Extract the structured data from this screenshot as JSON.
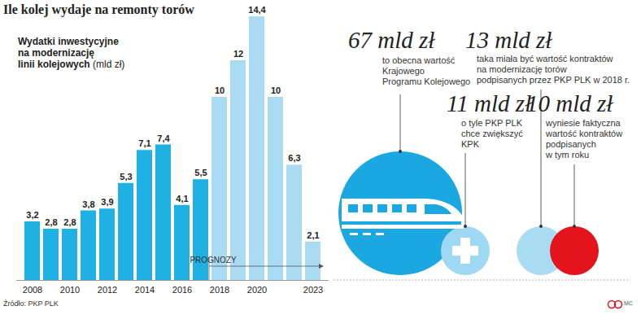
{
  "chart_data": {
    "type": "bar",
    "title": "Ile kolej wydaje na remonty torów",
    "subtitle": [
      "Wydatki inwestycyjne",
      "na modernizację",
      "linii kolejowych",
      "(mld zł)"
    ],
    "categories": [
      "2008",
      null,
      "2010",
      null,
      "2012",
      null,
      "2014",
      null,
      "2016",
      null,
      "2018",
      null,
      "2020",
      null,
      null,
      "2023"
    ],
    "values": [
      3.2,
      2.8,
      2.8,
      3.8,
      3.9,
      5.3,
      7.1,
      7.4,
      4.1,
      5.5,
      10,
      12,
      14.4,
      10,
      6.3,
      2.1
    ],
    "value_labels": [
      "3,2",
      "2,8",
      "2,8",
      "3,8",
      "3,9",
      "5,3",
      "7,1",
      "7,4",
      "4,1",
      "5,5",
      "10",
      "12",
      "14,4",
      "10",
      "6,3",
      "2,1"
    ],
    "colors": [
      "#1fb0e4",
      "#1fb0e4",
      "#1fb0e4",
      "#1fb0e4",
      "#1fb0e4",
      "#1fb0e4",
      "#1fb0e4",
      "#1fb0e4",
      "#1fb0e4",
      "#1fb0e4",
      "#a9dcf3",
      "#a9dcf3",
      "#a9dcf3",
      "#a9dcf3",
      "#a9dcf3",
      "#a9dcf3"
    ],
    "data_labels": true,
    "tick_labels": "x",
    "annotations": [
      "PROGNOZY"
    ],
    "source": "Źródło: PKP PLK",
    "credit": "MC"
  },
  "infographic": [
    {
      "value": "67 mld zł",
      "text": [
        "to obecna wartość",
        "Krajowego",
        "Programu Kolejowego"
      ]
    },
    {
      "value": "13 mld zł",
      "text": [
        "taka miała być wartość kontraktów",
        "na modernizację torów",
        "podpisanych przez PKP PLK w 2018 r."
      ]
    },
    {
      "value": "11 mld zł",
      "text": [
        "o tyle PKP PLK",
        "chce zwiększyć",
        "KPK"
      ]
    },
    {
      "value": "10 mld zł",
      "text": [
        "wyniesie faktyczna",
        "wartość kontraktów",
        "podpisanych",
        "w tym roku"
      ]
    }
  ]
}
